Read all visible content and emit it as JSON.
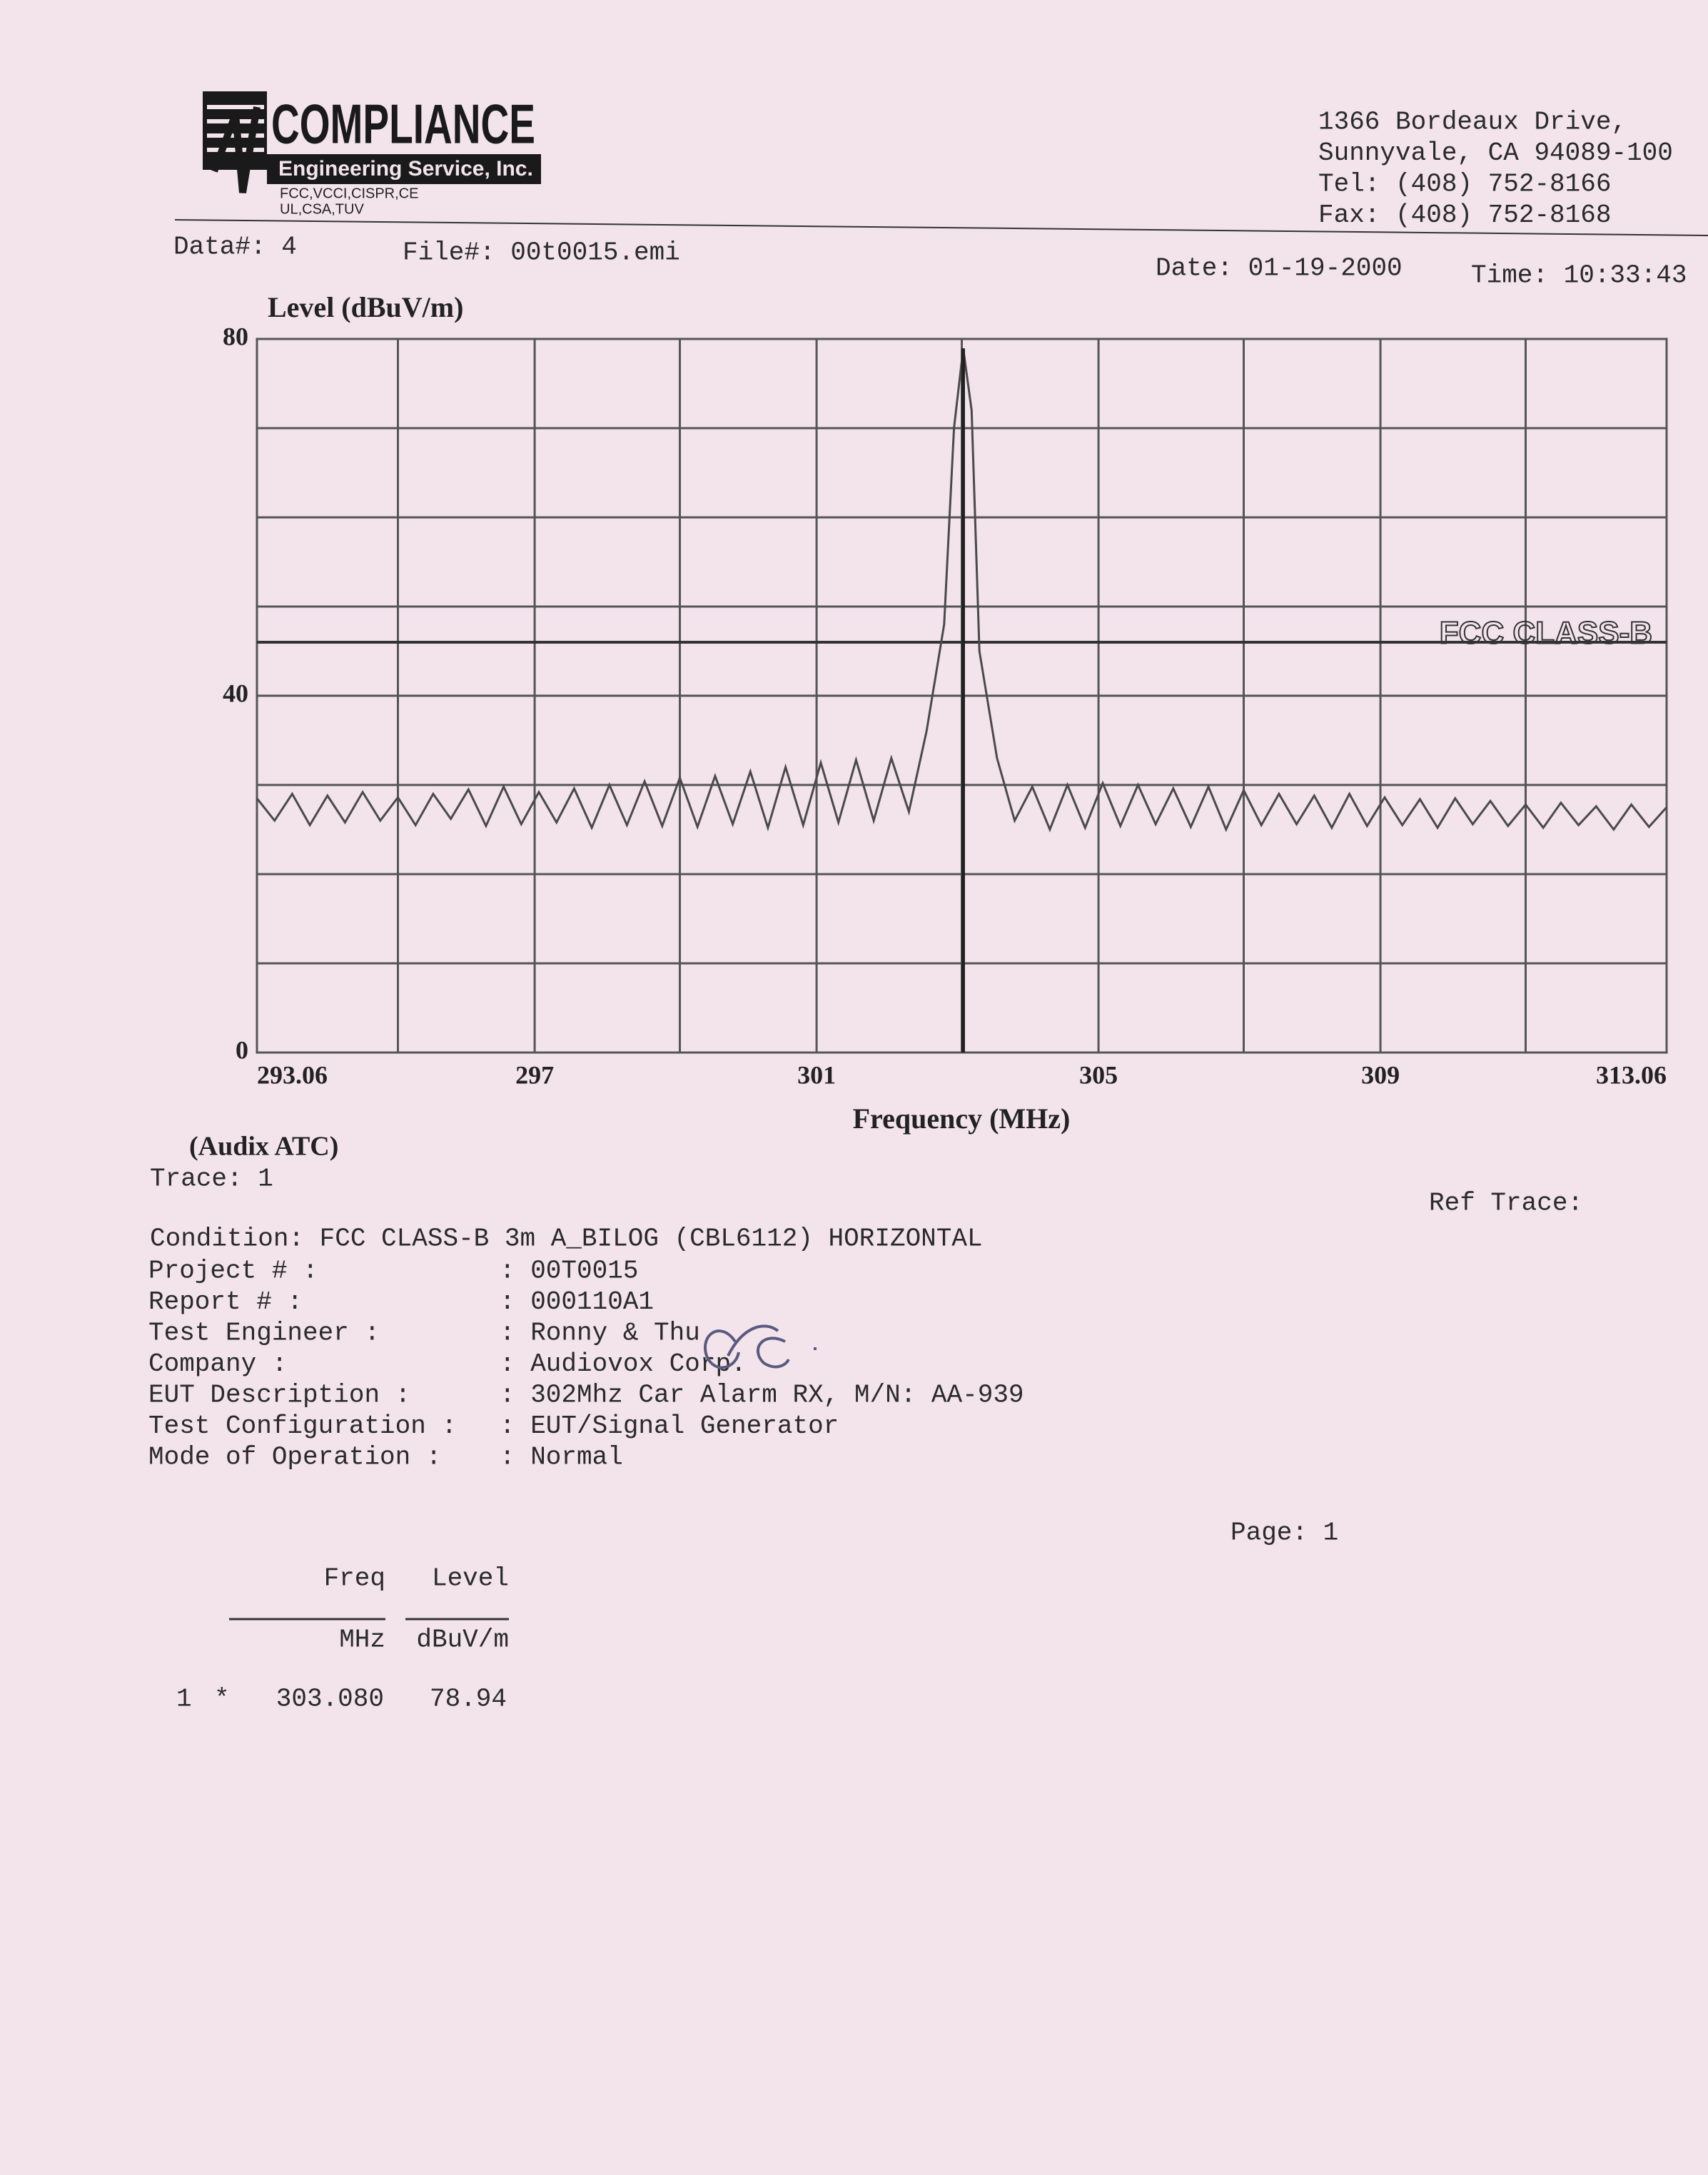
{
  "header": {
    "logo": {
      "name": "COMPLIANCE",
      "subtitle": "Engineering Service, Inc.",
      "certs_1": "FCC,VCCI,CISPR,CE",
      "certs_2": "UL,CSA,TUV"
    },
    "address": [
      "1366 Bordeaux Drive,",
      "Sunnyvale, CA 94089-100",
      "Tel: (408) 752-8166",
      "Fax: (408) 752-8168"
    ]
  },
  "info": {
    "data": "Data#: 4",
    "file": "File#: 00t0015.emi",
    "date": "Date: 01-19-2000",
    "time": "Time: 10:33:43"
  },
  "chart_data": {
    "type": "line",
    "y_label": "Level (dBuV/m)",
    "x_label": "Frequency (MHz)",
    "x": [
      293.06,
      293.31,
      293.56,
      293.81,
      294.06,
      294.31,
      294.56,
      294.81,
      295.06,
      295.31,
      295.56,
      295.81,
      296.06,
      296.31,
      296.56,
      296.81,
      297.06,
      297.31,
      297.56,
      297.81,
      298.06,
      298.31,
      298.56,
      298.81,
      299.06,
      299.31,
      299.56,
      299.81,
      300.06,
      300.31,
      300.56,
      300.81,
      301.06,
      301.31,
      301.56,
      301.81,
      302.06,
      302.31,
      302.56,
      302.81,
      302.95,
      303.08,
      303.2,
      303.31,
      303.56,
      303.81,
      304.06,
      304.31,
      304.56,
      304.81,
      305.06,
      305.31,
      305.56,
      305.81,
      306.06,
      306.31,
      306.56,
      306.81,
      307.06,
      307.31,
      307.56,
      307.81,
      308.06,
      308.31,
      308.56,
      308.81,
      309.06,
      309.31,
      309.56,
      309.81,
      310.06,
      310.31,
      310.56,
      310.81,
      311.06,
      311.31,
      311.56,
      311.81,
      312.06,
      312.31,
      312.56,
      312.81,
      313.06
    ],
    "values": [
      28.5,
      26,
      29,
      25.5,
      28.8,
      25.8,
      29.2,
      26,
      28.6,
      25.5,
      29,
      26.2,
      29.5,
      25.4,
      29.8,
      25.6,
      29.2,
      25.8,
      29.6,
      25.2,
      30,
      25.5,
      30.4,
      25.4,
      30.8,
      25.3,
      31,
      25.6,
      31.5,
      25.2,
      32,
      25.5,
      32.5,
      25.8,
      32.8,
      26,
      33,
      27,
      36,
      48,
      70,
      78.94,
      72,
      45,
      33,
      26,
      29.8,
      25,
      30,
      25.2,
      30.2,
      25.4,
      30,
      25.6,
      29.6,
      25.3,
      29.8,
      25,
      29.4,
      25.5,
      29,
      25.6,
      28.8,
      25.2,
      29,
      25.4,
      28.6,
      25.5,
      28.4,
      25.2,
      28.5,
      25.6,
      28.2,
      25.4,
      27.8,
      25.2,
      28,
      25.5,
      27.6,
      25,
      27.8,
      25.3,
      27.5
    ],
    "color": "#4a4a4a",
    "limit_line": {
      "value": 46,
      "label": "FCC CLASS-B"
    },
    "xlim": [
      293.06,
      313.06
    ],
    "xticks": [
      293.06,
      297,
      301,
      305,
      309,
      313.06
    ],
    "ylim": [
      0,
      80
    ],
    "yticks": [
      0,
      40,
      80
    ],
    "grid": true
  },
  "trace": {
    "source": "(Audix ATC)",
    "trace": "Trace: 1",
    "ref_trace": "Ref Trace:"
  },
  "details": {
    "condition": "Condition: FCC CLASS-B 3m A_BILOG (CBL6112) HORIZONTAL",
    "rows": [
      [
        "Project # :",
        ": 00T0015"
      ],
      [
        "Report # :",
        ": 000110A1"
      ],
      [
        "Test Engineer :",
        ": Ronny & Thu"
      ],
      [
        "Company :",
        ": Audiovox Corp."
      ],
      [
        "EUT Description :",
        ": 302Mhz Car Alarm RX, M/N: AA-939"
      ],
      [
        "Test Configuration :",
        ": EUT/Signal Generator"
      ],
      [
        "Mode of Operation :",
        ": Normal"
      ]
    ]
  },
  "page": "Page: 1",
  "table": {
    "headers": [
      "Freq",
      "Level"
    ],
    "units": [
      "MHz",
      "dBuV/m"
    ],
    "rows": [
      [
        "1",
        "*",
        "303.080",
        "78.94"
      ]
    ]
  }
}
